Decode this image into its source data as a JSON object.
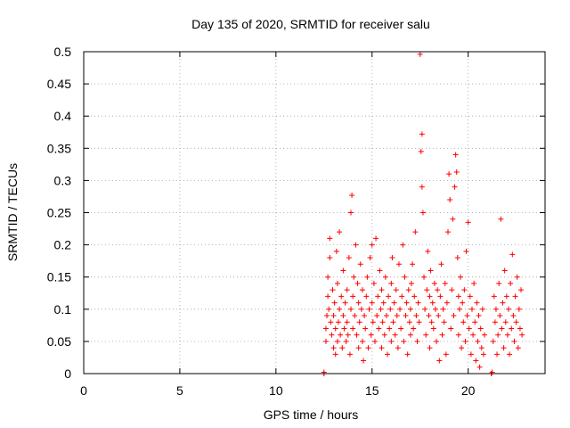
{
  "chart_data": {
    "type": "scatter",
    "title": "Day 135 of 2020, SRMTID for receiver salu",
    "xlabel": "GPS time / hours",
    "ylabel": "SRMTID / TECUs",
    "xlim": [
      0,
      24
    ],
    "ylim": [
      0,
      0.5
    ],
    "xticks": [
      0,
      5,
      10,
      15,
      20
    ],
    "yticks": [
      0,
      0.05,
      0.1,
      0.15,
      0.2,
      0.25,
      0.3,
      0.35,
      0.4,
      0.45,
      0.5
    ],
    "xtick_labels": [
      "0",
      "5",
      "10",
      "15",
      "20"
    ],
    "ytick_labels": [
      "0",
      "0.05",
      "0.1",
      "0.15",
      "0.2",
      "0.25",
      "0.3",
      "0.35",
      "0.4",
      "0.45",
      "0.5"
    ],
    "grid": true,
    "marker": "+",
    "color": "#ff0000",
    "points": [
      [
        12.5,
        0.0
      ],
      [
        12.5,
        0.002
      ],
      [
        12.6,
        0.05
      ],
      [
        12.6,
        0.07
      ],
      [
        12.65,
        0.09
      ],
      [
        12.7,
        0.12
      ],
      [
        12.7,
        0.15
      ],
      [
        12.75,
        0.1
      ],
      [
        12.8,
        0.18
      ],
      [
        12.8,
        0.21
      ],
      [
        12.85,
        0.08
      ],
      [
        12.9,
        0.06
      ],
      [
        12.95,
        0.13
      ],
      [
        13.0,
        0.04
      ],
      [
        13.0,
        0.09
      ],
      [
        13.05,
        0.11
      ],
      [
        13.1,
        0.03
      ],
      [
        13.1,
        0.07
      ],
      [
        13.15,
        0.19
      ],
      [
        13.2,
        0.05
      ],
      [
        13.2,
        0.14
      ],
      [
        13.25,
        0.08
      ],
      [
        13.3,
        0.22
      ],
      [
        13.3,
        0.1
      ],
      [
        13.35,
        0.06
      ],
      [
        13.4,
        0.12
      ],
      [
        13.45,
        0.04
      ],
      [
        13.5,
        0.16
      ],
      [
        13.5,
        0.09
      ],
      [
        13.55,
        0.07
      ],
      [
        13.6,
        0.11
      ],
      [
        13.65,
        0.05
      ],
      [
        13.7,
        0.13
      ],
      [
        13.7,
        0.08
      ],
      [
        13.75,
        0.06
      ],
      [
        13.8,
        0.18
      ],
      [
        13.85,
        0.03
      ],
      [
        13.9,
        0.25
      ],
      [
        13.9,
        0.1
      ],
      [
        13.95,
        0.277
      ],
      [
        14.0,
        0.12
      ],
      [
        14.0,
        0.07
      ],
      [
        14.05,
        0.15
      ],
      [
        14.1,
        0.09
      ],
      [
        14.15,
        0.2
      ],
      [
        14.2,
        0.06
      ],
      [
        14.25,
        0.14
      ],
      [
        14.3,
        0.11
      ],
      [
        14.3,
        0.04
      ],
      [
        14.35,
        0.08
      ],
      [
        14.4,
        0.17
      ],
      [
        14.45,
        0.1
      ],
      [
        14.5,
        0.05
      ],
      [
        14.5,
        0.13
      ],
      [
        14.55,
        0.02
      ],
      [
        14.6,
        0.09
      ],
      [
        14.65,
        0.07
      ],
      [
        14.7,
        0.12
      ],
      [
        14.75,
        0.15
      ],
      [
        14.8,
        0.04
      ],
      [
        14.85,
        0.1
      ],
      [
        14.9,
        0.18
      ],
      [
        14.95,
        0.06
      ],
      [
        15.0,
        0.11
      ],
      [
        15.0,
        0.2
      ],
      [
        15.05,
        0.08
      ],
      [
        15.1,
        0.14
      ],
      [
        15.15,
        0.05
      ],
      [
        15.2,
        0.21
      ],
      [
        15.25,
        0.09
      ],
      [
        15.3,
        0.12
      ],
      [
        15.35,
        0.07
      ],
      [
        15.4,
        0.16
      ],
      [
        15.45,
        0.1
      ],
      [
        15.5,
        0.04
      ],
      [
        15.5,
        0.13
      ],
      [
        15.55,
        0.08
      ],
      [
        15.6,
        0.11
      ],
      [
        15.65,
        0.06
      ],
      [
        15.7,
        0.15
      ],
      [
        15.75,
        0.09
      ],
      [
        15.8,
        0.03
      ],
      [
        15.85,
        0.12
      ],
      [
        15.9,
        0.07
      ],
      [
        15.95,
        0.1
      ],
      [
        16.0,
        0.05
      ],
      [
        16.0,
        0.14
      ],
      [
        16.05,
        0.18
      ],
      [
        16.1,
        0.08
      ],
      [
        16.15,
        0.11
      ],
      [
        16.2,
        0.06
      ],
      [
        16.25,
        0.13
      ],
      [
        16.3,
        0.09
      ],
      [
        16.35,
        0.04
      ],
      [
        16.4,
        0.17
      ],
      [
        16.45,
        0.1
      ],
      [
        16.5,
        0.07
      ],
      [
        16.55,
        0.12
      ],
      [
        16.6,
        0.2
      ],
      [
        16.65,
        0.05
      ],
      [
        16.7,
        0.15
      ],
      [
        16.75,
        0.09
      ],
      [
        16.8,
        0.11
      ],
      [
        16.85,
        0.03
      ],
      [
        16.9,
        0.13
      ],
      [
        16.95,
        0.08
      ],
      [
        17.0,
        0.1
      ],
      [
        17.0,
        0.06
      ],
      [
        17.05,
        0.14
      ],
      [
        17.1,
        0.17
      ],
      [
        17.15,
        0.07
      ],
      [
        17.2,
        0.12
      ],
      [
        17.25,
        0.22
      ],
      [
        17.3,
        0.09
      ],
      [
        17.35,
        0.05
      ],
      [
        17.4,
        0.11
      ],
      [
        17.45,
        0.08
      ],
      [
        17.5,
        0.496
      ],
      [
        17.55,
        0.345
      ],
      [
        17.6,
        0.372
      ],
      [
        17.6,
        0.29
      ],
      [
        17.65,
        0.25
      ],
      [
        17.7,
        0.15
      ],
      [
        17.75,
        0.1
      ],
      [
        17.8,
        0.06
      ],
      [
        17.85,
        0.13
      ],
      [
        17.9,
        0.19
      ],
      [
        17.95,
        0.09
      ],
      [
        18.0,
        0.12
      ],
      [
        18.0,
        0.04
      ],
      [
        18.05,
        0.16
      ],
      [
        18.1,
        0.08
      ],
      [
        18.15,
        0.11
      ],
      [
        18.2,
        0.07
      ],
      [
        18.25,
        0.14
      ],
      [
        18.3,
        0.1
      ],
      [
        18.35,
        0.05
      ],
      [
        18.4,
        0.13
      ],
      [
        18.45,
        0.09
      ],
      [
        18.5,
        0.02
      ],
      [
        18.55,
        0.12
      ],
      [
        18.6,
        0.17
      ],
      [
        18.65,
        0.06
      ],
      [
        18.7,
        0.1
      ],
      [
        18.75,
        0.08
      ],
      [
        18.8,
        0.14
      ],
      [
        18.85,
        0.03
      ],
      [
        18.9,
        0.11
      ],
      [
        18.95,
        0.22
      ],
      [
        19.0,
        0.31
      ],
      [
        19.05,
        0.27
      ],
      [
        19.1,
        0.07
      ],
      [
        19.15,
        0.13
      ],
      [
        19.2,
        0.24
      ],
      [
        19.25,
        0.09
      ],
      [
        19.3,
        0.29
      ],
      [
        19.35,
        0.34
      ],
      [
        19.4,
        0.313
      ],
      [
        19.45,
        0.18
      ],
      [
        19.5,
        0.12
      ],
      [
        19.5,
        0.06
      ],
      [
        19.55,
        0.1
      ],
      [
        19.6,
        0.15
      ],
      [
        19.65,
        0.04
      ],
      [
        19.7,
        0.11
      ],
      [
        19.75,
        0.08
      ],
      [
        19.8,
        0.13
      ],
      [
        19.85,
        0.05
      ],
      [
        19.9,
        0.19
      ],
      [
        19.95,
        0.09
      ],
      [
        20.0,
        0.235
      ],
      [
        20.05,
        0.07
      ],
      [
        20.1,
        0.12
      ],
      [
        20.15,
        0.03
      ],
      [
        20.2,
        0.1
      ],
      [
        20.25,
        0.06
      ],
      [
        20.3,
        0.14
      ],
      [
        20.35,
        0.08
      ],
      [
        20.4,
        0.02
      ],
      [
        20.45,
        0.11
      ],
      [
        20.5,
        0.05
      ],
      [
        20.55,
        0.09
      ],
      [
        20.6,
        0.01
      ],
      [
        20.65,
        0.07
      ],
      [
        20.7,
        0.04
      ],
      [
        20.75,
        0.1
      ],
      [
        20.8,
        0.03
      ],
      [
        20.85,
        0.06
      ],
      [
        21.2,
        0.0
      ],
      [
        21.25,
        0.002
      ],
      [
        21.3,
        0.05
      ],
      [
        21.35,
        0.12
      ],
      [
        21.4,
        0.08
      ],
      [
        21.45,
        0.1
      ],
      [
        21.5,
        0.03
      ],
      [
        21.55,
        0.06
      ],
      [
        21.6,
        0.14
      ],
      [
        21.65,
        0.09
      ],
      [
        21.7,
        0.24
      ],
      [
        21.75,
        0.07
      ],
      [
        21.8,
        0.11
      ],
      [
        21.85,
        0.04
      ],
      [
        21.9,
        0.16
      ],
      [
        21.95,
        0.08
      ],
      [
        22.0,
        0.12
      ],
      [
        22.05,
        0.06
      ],
      [
        22.1,
        0.1
      ],
      [
        22.15,
        0.03
      ],
      [
        22.2,
        0.14
      ],
      [
        22.25,
        0.07
      ],
      [
        22.3,
        0.185
      ],
      [
        22.35,
        0.09
      ],
      [
        22.4,
        0.05
      ],
      [
        22.45,
        0.12
      ],
      [
        22.5,
        0.08
      ],
      [
        22.55,
        0.15
      ],
      [
        22.6,
        0.04
      ],
      [
        22.65,
        0.1
      ],
      [
        22.7,
        0.07
      ],
      [
        22.75,
        0.13
      ],
      [
        22.8,
        0.06
      ]
    ]
  }
}
